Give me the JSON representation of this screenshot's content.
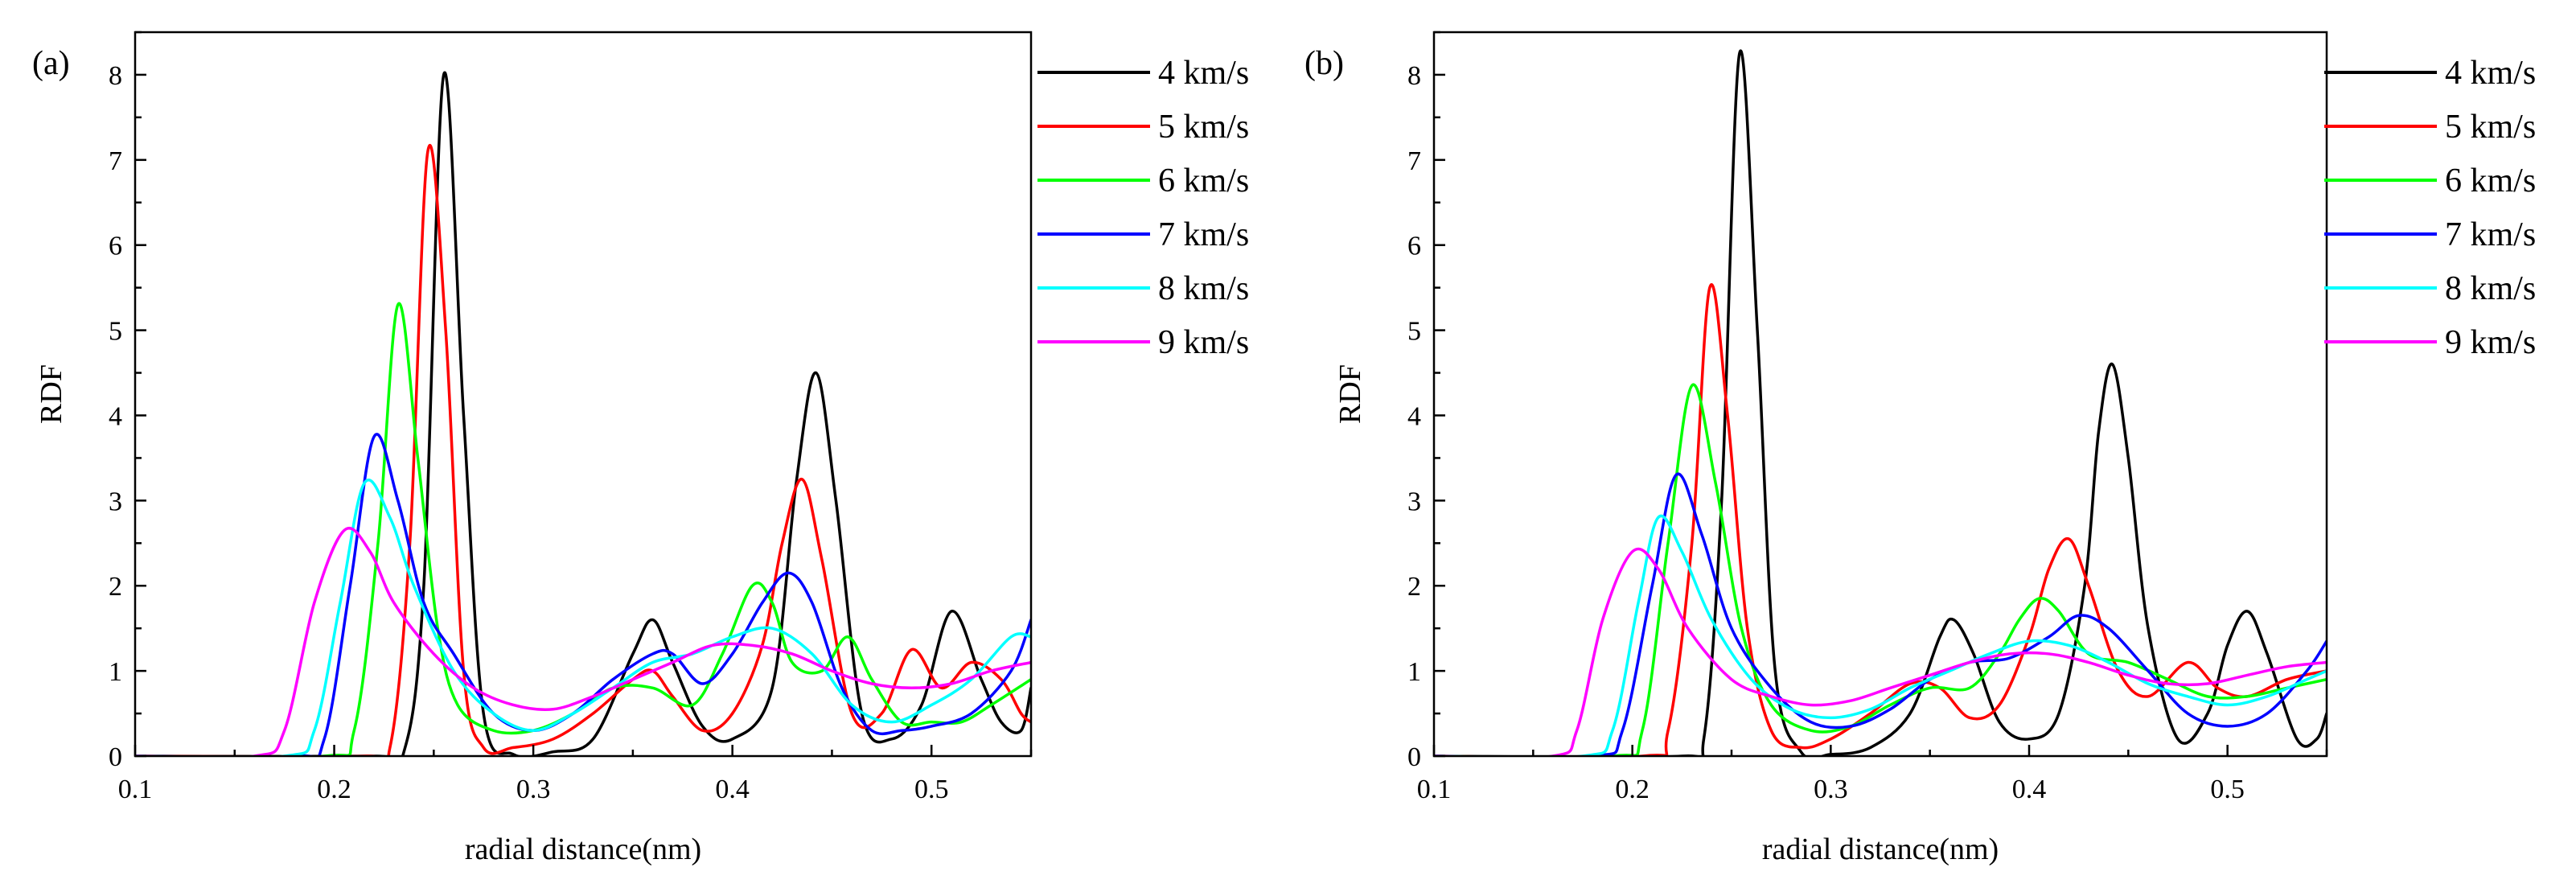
{
  "chart_data": [
    {
      "type": "line",
      "panel_label": "(a)",
      "xlabel": "radial distance(nm)",
      "ylabel": "RDF",
      "xlim": [
        0.1,
        0.55
      ],
      "ylim": [
        0,
        8.5
      ],
      "xticks": [
        0.1,
        0.2,
        0.3,
        0.4,
        0.5
      ],
      "yticks": [
        0,
        1,
        2,
        3,
        4,
        5,
        6,
        7,
        8
      ],
      "xtick_labels": [
        "0.1",
        "0.2",
        "0.3",
        "0.4",
        "0.5"
      ],
      "ytick_labels": [
        "0",
        "1",
        "2",
        "3",
        "4",
        "5",
        "6",
        "7",
        "8"
      ],
      "grid": false,
      "legend_position": "outside-right",
      "series": [
        {
          "name": "4 km/s",
          "color": "#000000",
          "x": [
            0.1,
            0.22,
            0.235,
            0.245,
            0.255,
            0.265,
            0.275,
            0.29,
            0.31,
            0.33,
            0.35,
            0.36,
            0.37,
            0.385,
            0.4,
            0.42,
            0.432,
            0.442,
            0.452,
            0.465,
            0.48,
            0.495,
            0.51,
            0.525,
            0.535,
            0.545,
            0.55
          ],
          "y": [
            0,
            0,
            0.05,
            2.0,
            8.0,
            4.0,
            0.5,
            0.02,
            0.05,
            0.2,
            1.2,
            1.6,
            1.1,
            0.35,
            0.2,
            0.8,
            3.2,
            4.5,
            3.0,
            0.5,
            0.2,
            0.6,
            1.7,
            0.9,
            0.4,
            0.3,
            0.8
          ]
        },
        {
          "name": "5 km/s",
          "color": "#ff0000",
          "x": [
            0.1,
            0.215,
            0.228,
            0.238,
            0.247,
            0.256,
            0.265,
            0.275,
            0.29,
            0.31,
            0.33,
            0.35,
            0.36,
            0.37,
            0.385,
            0.4,
            0.415,
            0.425,
            0.435,
            0.445,
            0.46,
            0.475,
            0.49,
            0.505,
            0.52,
            0.535,
            0.545,
            0.55
          ],
          "y": [
            0,
            0,
            0.1,
            2.5,
            7.1,
            5.0,
            1.0,
            0.1,
            0.1,
            0.2,
            0.5,
            0.9,
            1.0,
            0.7,
            0.3,
            0.5,
            1.3,
            2.5,
            3.25,
            2.3,
            0.5,
            0.5,
            1.25,
            0.8,
            1.1,
            0.9,
            0.5,
            0.4
          ]
        },
        {
          "name": "6 km/s",
          "color": "#00ff00",
          "x": [
            0.1,
            0.195,
            0.21,
            0.222,
            0.232,
            0.242,
            0.252,
            0.262,
            0.28,
            0.3,
            0.32,
            0.34,
            0.36,
            0.38,
            0.395,
            0.41,
            0.42,
            0.43,
            0.445,
            0.458,
            0.47,
            0.485,
            0.5,
            0.515,
            0.53,
            0.55
          ],
          "y": [
            0,
            0,
            0.3,
            2.5,
            5.3,
            3.5,
            1.5,
            0.6,
            0.3,
            0.3,
            0.5,
            0.8,
            0.8,
            0.6,
            1.2,
            2.0,
            1.8,
            1.1,
            1.0,
            1.4,
            0.9,
            0.4,
            0.4,
            0.4,
            0.6,
            0.9
          ]
        },
        {
          "name": "7 km/s",
          "color": "#0000ff",
          "x": [
            0.1,
            0.18,
            0.195,
            0.208,
            0.22,
            0.232,
            0.245,
            0.26,
            0.28,
            0.3,
            0.32,
            0.34,
            0.36,
            0.37,
            0.385,
            0.4,
            0.415,
            0.428,
            0.44,
            0.455,
            0.47,
            0.485,
            0.5,
            0.52,
            0.54,
            0.55
          ],
          "y": [
            0,
            0,
            0.2,
            2.0,
            3.75,
            3.0,
            1.8,
            1.2,
            0.5,
            0.3,
            0.5,
            0.9,
            1.2,
            1.2,
            0.85,
            1.2,
            1.8,
            2.15,
            1.8,
            0.8,
            0.3,
            0.3,
            0.35,
            0.5,
            1.0,
            1.6
          ]
        },
        {
          "name": "8 km/s",
          "color": "#00ffff",
          "x": [
            0.1,
            0.175,
            0.19,
            0.203,
            0.215,
            0.228,
            0.24,
            0.26,
            0.28,
            0.3,
            0.32,
            0.34,
            0.36,
            0.38,
            0.4,
            0.42,
            0.44,
            0.46,
            0.48,
            0.5,
            0.52,
            0.54,
            0.55
          ],
          "y": [
            0,
            0,
            0.3,
            1.8,
            3.2,
            2.8,
            2.0,
            1.0,
            0.5,
            0.3,
            0.5,
            0.8,
            1.1,
            1.2,
            1.4,
            1.5,
            1.2,
            0.6,
            0.4,
            0.6,
            0.9,
            1.4,
            1.4
          ]
        },
        {
          "name": "9 km/s",
          "color": "#ff00ff",
          "x": [
            0.1,
            0.16,
            0.175,
            0.19,
            0.205,
            0.218,
            0.23,
            0.25,
            0.27,
            0.29,
            0.31,
            0.33,
            0.35,
            0.37,
            0.39,
            0.41,
            0.43,
            0.45,
            0.47,
            0.49,
            0.51,
            0.53,
            0.55
          ],
          "y": [
            0,
            0,
            0.3,
            1.8,
            2.65,
            2.4,
            1.8,
            1.2,
            0.8,
            0.6,
            0.55,
            0.7,
            0.9,
            1.1,
            1.3,
            1.3,
            1.2,
            1.0,
            0.85,
            0.8,
            0.85,
            1.0,
            1.1
          ]
        }
      ]
    },
    {
      "type": "line",
      "panel_label": "(b)",
      "xlabel": "radial distance(nm)",
      "ylabel": "RDF",
      "xlim": [
        0.1,
        0.55
      ],
      "ylim": [
        0,
        8.5
      ],
      "xticks": [
        0.1,
        0.2,
        0.3,
        0.4,
        0.5
      ],
      "yticks": [
        0,
        1,
        2,
        3,
        4,
        5,
        6,
        7,
        8
      ],
      "xtick_labels": [
        "0.1",
        "0.2",
        "0.3",
        "0.4",
        "0.5"
      ],
      "ytick_labels": [
        "0",
        "1",
        "2",
        "3",
        "4",
        "5",
        "6",
        "7",
        "8"
      ],
      "grid": false,
      "legend_position": "outside-right",
      "series": [
        {
          "name": "4 km/s",
          "color": "#000000",
          "x": [
            0.1,
            0.225,
            0.236,
            0.245,
            0.254,
            0.263,
            0.272,
            0.285,
            0.3,
            0.32,
            0.34,
            0.355,
            0.362,
            0.372,
            0.385,
            0.4,
            0.415,
            0.428,
            0.435,
            0.442,
            0.45,
            0.46,
            0.475,
            0.49,
            0.5,
            0.51,
            0.52,
            0.535,
            0.545,
            0.55
          ],
          "y": [
            0,
            0,
            0.2,
            3.0,
            8.25,
            5.0,
            1.0,
            0.05,
            0.02,
            0.1,
            0.5,
            1.4,
            1.6,
            1.2,
            0.4,
            0.2,
            0.5,
            2.0,
            3.8,
            4.6,
            3.5,
            1.5,
            0.2,
            0.5,
            1.3,
            1.7,
            1.2,
            0.2,
            0.2,
            0.5
          ]
        },
        {
          "name": "5 km/s",
          "color": "#ff0000",
          "x": [
            0.1,
            0.205,
            0.218,
            0.23,
            0.239,
            0.248,
            0.258,
            0.27,
            0.285,
            0.3,
            0.32,
            0.34,
            0.355,
            0.37,
            0.385,
            0.4,
            0.41,
            0.42,
            0.43,
            0.445,
            0.46,
            0.48,
            0.495,
            0.51,
            0.53,
            0.55
          ],
          "y": [
            0,
            0,
            0.3,
            2.5,
            5.5,
            4.0,
            1.5,
            0.3,
            0.1,
            0.2,
            0.5,
            0.85,
            0.8,
            0.45,
            0.6,
            1.4,
            2.2,
            2.55,
            2.0,
            1.0,
            0.7,
            1.1,
            0.8,
            0.7,
            0.9,
            1.0
          ]
        },
        {
          "name": "6 km/s",
          "color": "#00ff00",
          "x": [
            0.1,
            0.19,
            0.205,
            0.218,
            0.23,
            0.242,
            0.255,
            0.27,
            0.29,
            0.31,
            0.33,
            0.35,
            0.37,
            0.385,
            0.395,
            0.405,
            0.415,
            0.43,
            0.45,
            0.47,
            0.49,
            0.51,
            0.53,
            0.55
          ],
          "y": [
            0,
            0,
            0.3,
            2.5,
            4.35,
            3.2,
            1.5,
            0.6,
            0.3,
            0.35,
            0.6,
            0.8,
            0.8,
            1.2,
            1.6,
            1.85,
            1.7,
            1.2,
            1.1,
            0.9,
            0.7,
            0.7,
            0.8,
            0.9
          ]
        },
        {
          "name": "7 km/s",
          "color": "#0000ff",
          "x": [
            0.1,
            0.18,
            0.195,
            0.21,
            0.222,
            0.235,
            0.25,
            0.27,
            0.29,
            0.31,
            0.33,
            0.35,
            0.37,
            0.39,
            0.41,
            0.425,
            0.44,
            0.46,
            0.48,
            0.5,
            0.52,
            0.54,
            0.55
          ],
          "y": [
            0,
            0,
            0.3,
            2.0,
            3.3,
            2.6,
            1.5,
            0.8,
            0.4,
            0.35,
            0.55,
            0.9,
            1.1,
            1.15,
            1.4,
            1.65,
            1.5,
            1.0,
            0.5,
            0.35,
            0.5,
            1.0,
            1.35
          ]
        },
        {
          "name": "8 km/s",
          "color": "#00ffff",
          "x": [
            0.1,
            0.175,
            0.19,
            0.203,
            0.213,
            0.225,
            0.24,
            0.26,
            0.28,
            0.3,
            0.32,
            0.34,
            0.36,
            0.38,
            0.4,
            0.42,
            0.44,
            0.46,
            0.48,
            0.5,
            0.52,
            0.54,
            0.55
          ],
          "y": [
            0,
            0,
            0.3,
            1.8,
            2.8,
            2.4,
            1.6,
            0.9,
            0.55,
            0.45,
            0.55,
            0.8,
            1.0,
            1.2,
            1.35,
            1.3,
            1.1,
            0.85,
            0.7,
            0.6,
            0.7,
            0.9,
            1.0
          ]
        },
        {
          "name": "9 km/s",
          "color": "#ff00ff",
          "x": [
            0.1,
            0.16,
            0.172,
            0.185,
            0.2,
            0.213,
            0.228,
            0.25,
            0.27,
            0.29,
            0.31,
            0.33,
            0.35,
            0.37,
            0.39,
            0.41,
            0.43,
            0.45,
            0.47,
            0.49,
            0.51,
            0.53,
            0.55
          ],
          "y": [
            0,
            0,
            0.3,
            1.6,
            2.4,
            2.2,
            1.5,
            0.9,
            0.7,
            0.6,
            0.65,
            0.8,
            0.95,
            1.1,
            1.2,
            1.2,
            1.1,
            0.95,
            0.85,
            0.85,
            0.95,
            1.05,
            1.1
          ]
        }
      ]
    }
  ]
}
